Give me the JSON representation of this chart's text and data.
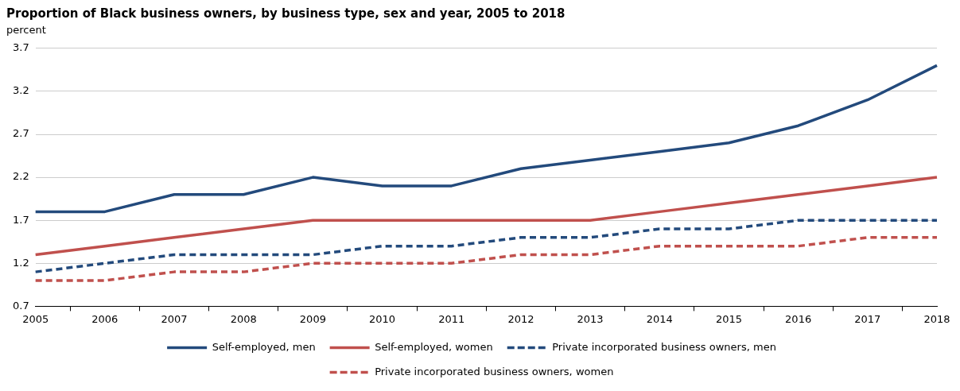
{
  "chart_data": {
    "type": "line",
    "title": "Proportion of Black business owners, by business type, sex and year, 2005 to 2018",
    "ylabel": "percent",
    "categories": [
      "2005",
      "2006",
      "2007",
      "2008",
      "2009",
      "2010",
      "2011",
      "2012",
      "2013",
      "2014",
      "2015",
      "2016",
      "2017",
      "2018"
    ],
    "series": [
      {
        "name": "Self-employed, men",
        "color": "#234a7c",
        "line_style": "solid",
        "values": [
          1.8,
          1.8,
          2.0,
          2.0,
          2.2,
          2.1,
          2.1,
          2.3,
          2.4,
          2.5,
          2.6,
          2.8,
          3.1,
          3.5
        ]
      },
      {
        "name": "Self-employed, women",
        "color": "#c0504d",
        "line_style": "solid",
        "values": [
          1.3,
          1.4,
          1.5,
          1.6,
          1.7,
          1.7,
          1.7,
          1.7,
          1.7,
          1.8,
          1.9,
          2.0,
          2.1,
          2.2
        ]
      },
      {
        "name": "Private incorporated business owners, men",
        "color": "#234a7c",
        "line_style": "dashed",
        "values": [
          1.1,
          1.2,
          1.3,
          1.3,
          1.3,
          1.4,
          1.4,
          1.5,
          1.5,
          1.6,
          1.6,
          1.7,
          1.7,
          1.7
        ]
      },
      {
        "name": "Private incorporated business owners, women",
        "color": "#c0504d",
        "line_style": "dashed",
        "values": [
          1.0,
          1.0,
          1.1,
          1.1,
          1.2,
          1.2,
          1.2,
          1.3,
          1.3,
          1.4,
          1.4,
          1.4,
          1.5,
          1.5
        ]
      }
    ],
    "ylim": [
      0.7,
      3.7
    ],
    "yticks": [
      0.7,
      1.2,
      1.7,
      2.2,
      2.7,
      3.2,
      3.7
    ],
    "grid": "y",
    "legend": "bottom",
    "marker": "none"
  }
}
